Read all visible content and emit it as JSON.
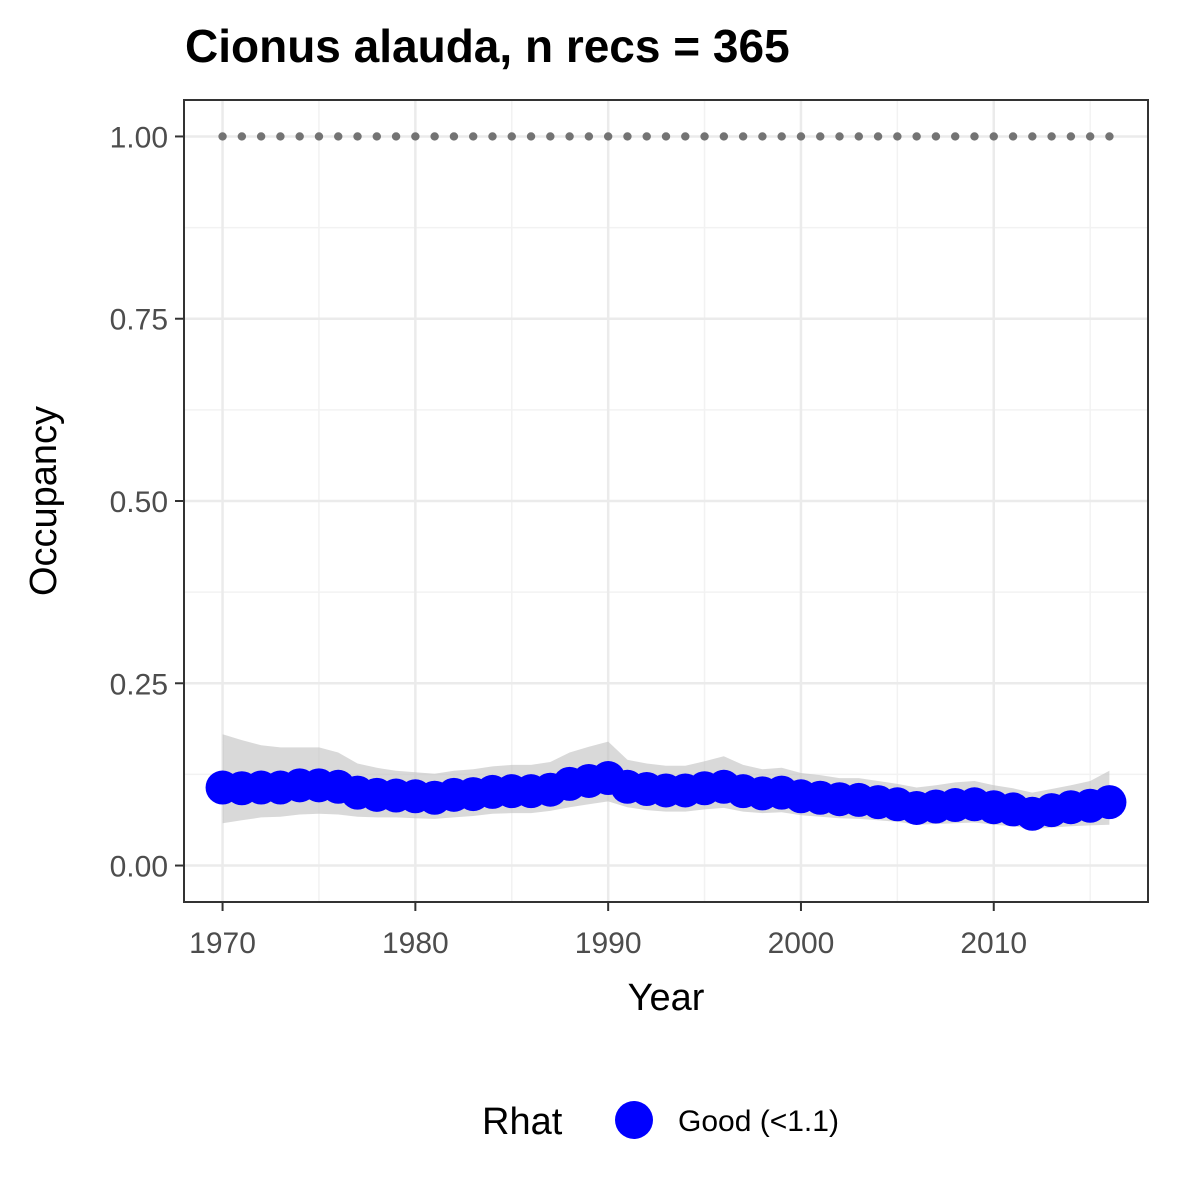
{
  "chart_data": {
    "type": "line",
    "title": "Cionus alauda, n recs = 365",
    "xlabel": "Year",
    "ylabel": "Occupancy",
    "xlim": [
      1968,
      2018
    ],
    "ylim": [
      -0.05,
      1.05
    ],
    "xticks": [
      1970,
      1980,
      1990,
      2000,
      2010
    ],
    "xtick_labels": [
      "1970",
      "1980",
      "1990",
      "2000",
      "2010"
    ],
    "yticks": [
      0,
      0.25,
      0.5,
      0.75,
      1
    ],
    "ytick_labels": [
      "0.00",
      "0.25",
      "0.50",
      "0.75",
      "1.00"
    ],
    "grid": true,
    "legend": {
      "title": "Rhat",
      "position": "bottom",
      "entries": [
        {
          "label": "Good (<1.1)",
          "color": "#0000ff"
        }
      ]
    },
    "x": [
      1970,
      1971,
      1972,
      1973,
      1974,
      1975,
      1976,
      1977,
      1978,
      1979,
      1980,
      1981,
      1982,
      1983,
      1984,
      1985,
      1986,
      1987,
      1988,
      1989,
      1990,
      1991,
      1992,
      1993,
      1994,
      1995,
      1996,
      1997,
      1998,
      1999,
      2000,
      2001,
      2002,
      2003,
      2004,
      2005,
      2006,
      2007,
      2008,
      2009,
      2010,
      2011,
      2012,
      2013,
      2014,
      2015,
      2016
    ],
    "series": [
      {
        "name": "Good (<1.1)",
        "color": "#0000ff",
        "values": [
          0.107,
          0.106,
          0.107,
          0.107,
          0.11,
          0.11,
          0.108,
          0.1,
          0.097,
          0.096,
          0.095,
          0.093,
          0.097,
          0.098,
          0.101,
          0.102,
          0.102,
          0.104,
          0.112,
          0.116,
          0.12,
          0.108,
          0.105,
          0.103,
          0.103,
          0.106,
          0.108,
          0.102,
          0.099,
          0.1,
          0.095,
          0.093,
          0.091,
          0.09,
          0.087,
          0.084,
          0.079,
          0.081,
          0.083,
          0.084,
          0.08,
          0.077,
          0.071,
          0.076,
          0.08,
          0.082,
          0.087
        ],
        "lower": [
          0.058,
          0.062,
          0.066,
          0.067,
          0.07,
          0.071,
          0.07,
          0.067,
          0.066,
          0.066,
          0.065,
          0.064,
          0.066,
          0.068,
          0.071,
          0.072,
          0.072,
          0.075,
          0.08,
          0.084,
          0.088,
          0.08,
          0.076,
          0.074,
          0.074,
          0.077,
          0.079,
          0.074,
          0.072,
          0.073,
          0.069,
          0.067,
          0.065,
          0.064,
          0.062,
          0.06,
          0.056,
          0.057,
          0.058,
          0.059,
          0.056,
          0.054,
          0.05,
          0.052,
          0.054,
          0.055,
          0.056
        ],
        "upper": [
          0.18,
          0.172,
          0.165,
          0.162,
          0.162,
          0.162,
          0.155,
          0.14,
          0.134,
          0.13,
          0.128,
          0.126,
          0.13,
          0.132,
          0.136,
          0.138,
          0.138,
          0.142,
          0.155,
          0.163,
          0.17,
          0.145,
          0.14,
          0.137,
          0.137,
          0.143,
          0.15,
          0.138,
          0.132,
          0.134,
          0.127,
          0.124,
          0.12,
          0.12,
          0.116,
          0.112,
          0.107,
          0.11,
          0.114,
          0.116,
          0.11,
          0.106,
          0.1,
          0.105,
          0.11,
          0.116,
          0.13
        ]
      },
      {
        "name": "",
        "color": "#737373",
        "values": [
          1,
          1,
          1,
          1,
          1,
          1,
          1,
          1,
          1,
          1,
          1,
          1,
          1,
          1,
          1,
          1,
          1,
          1,
          1,
          1,
          1,
          1,
          1,
          1,
          1,
          1,
          1,
          1,
          1,
          1,
          1,
          1,
          1,
          1,
          1,
          1,
          1,
          1,
          1,
          1,
          1,
          1,
          1,
          1,
          1,
          1,
          1
        ]
      }
    ]
  }
}
